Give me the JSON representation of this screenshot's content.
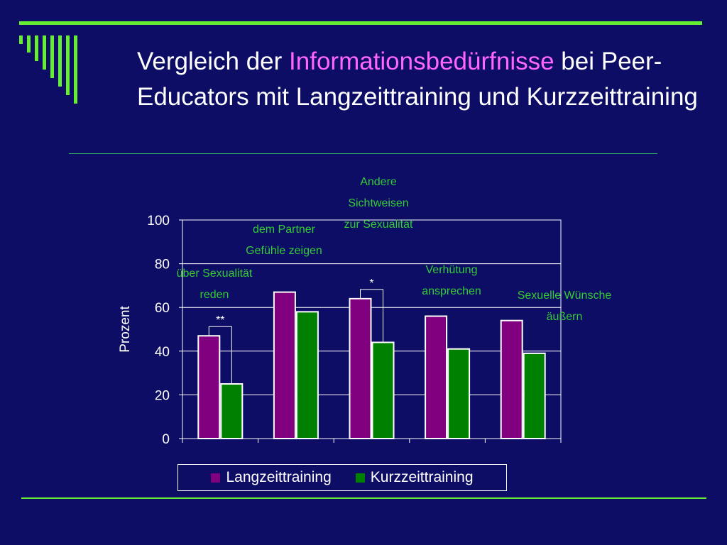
{
  "slide": {
    "title_part1": "Vergleich der ",
    "title_highlight": "Informationsbedürfnisse",
    "title_part2": " bei Peer-Educators mit Langzeittraining und Kurzzeittraining",
    "accent_color": "#66ee33",
    "highlight_color": "#ff66ff",
    "background_color": "#0d0d66"
  },
  "chart_data": {
    "type": "bar",
    "categories": [
      [
        "über Sexualität",
        "reden"
      ],
      [
        "dem Partner",
        "Gefühle zeigen"
      ],
      [
        "Andere",
        "Sichtweisen",
        "zur Sexualität"
      ],
      [
        "Verhütung",
        "ansprechen"
      ],
      [
        "Sexuelle Wünsche",
        "äußern"
      ]
    ],
    "series": [
      {
        "name": "Langzeittraining",
        "color": "#800080",
        "values": [
          47,
          67,
          64,
          56,
          54
        ]
      },
      {
        "name": "Kurzzeittraining",
        "color": "#008000",
        "values": [
          25,
          58,
          44,
          41,
          39
        ]
      }
    ],
    "significance": [
      {
        "category_index": 0,
        "label": "**"
      },
      {
        "category_index": 2,
        "label": "*"
      }
    ],
    "ylabel": "Prozent",
    "ylim": [
      0,
      100
    ],
    "yticks": [
      0,
      20,
      40,
      60,
      80,
      100
    ],
    "grid": true,
    "legend_position": "bottom",
    "category_label_color": "#33cc33"
  }
}
